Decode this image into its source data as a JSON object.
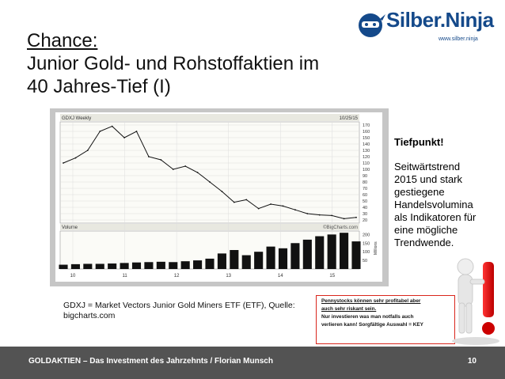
{
  "slide": {
    "title_line1": "Chance:",
    "title_line2": "Junior Gold- und Rohstoffaktien im",
    "title_line3": "40 Jahres-Tief (I)",
    "side_heading": "Tiefpunkt!",
    "side_body": "Seitwärtstrend 2015 und stark gestiegene Handelsvolumina als Indikatoren für eine mögliche Trendwende.",
    "caption": "GDXJ = Market Vectors Junior Gold Miners ETF (ETF), Quelle: bigcharts.com",
    "warning": {
      "line1": "Pennystocks können sehr profitabel aber",
      "line2": "auch sehr riskant sein.",
      "line3": "Nur investieren was man notfalls auch",
      "line4": "verlieren kann! Sorgfältige Auswahl = KEY"
    }
  },
  "logo": {
    "name_part1": "Silber",
    "name_part2": ".Ninja",
    "url": "www.silber.ninja",
    "accent_color": "#14498a"
  },
  "footer": {
    "text": "GOLDAKTIEN – Das Investment des Jahrzehnts / Florian Munsch",
    "page": "10"
  },
  "chart_data": {
    "type": "line",
    "title": "GDXJ Weekly",
    "date_label": "10/25/15",
    "watermark": "©BigCharts.com",
    "volume_label": "Volume",
    "x_ticks": [
      "10",
      "11",
      "12",
      "13",
      "14",
      "15"
    ],
    "y_ticks": [
      "170",
      "160",
      "150",
      "140",
      "130",
      "120",
      "110",
      "100",
      "90",
      "80",
      "70",
      "60",
      "50",
      "40",
      "30",
      "20"
    ],
    "volume_unit": "Millions",
    "volume_ticks": [
      "200",
      "150",
      "100",
      "50"
    ],
    "ylim": [
      15,
      175
    ],
    "x": [
      "2009-11",
      "2010-03",
      "2010-07",
      "2010-11",
      "2011-03",
      "2011-07",
      "2011-09",
      "2011-12",
      "2012-03",
      "2012-06",
      "2012-09",
      "2012-12",
      "2013-02",
      "2013-04",
      "2013-06",
      "2013-08",
      "2013-12",
      "2014-03",
      "2014-06",
      "2014-09",
      "2014-12",
      "2015-03",
      "2015-06",
      "2015-09",
      "2015-10"
    ],
    "values": [
      110,
      118,
      130,
      160,
      168,
      150,
      160,
      120,
      115,
      100,
      105,
      95,
      80,
      65,
      48,
      52,
      38,
      45,
      42,
      36,
      30,
      28,
      27,
      22,
      24
    ],
    "volume": [
      25,
      28,
      30,
      30,
      32,
      35,
      38,
      40,
      42,
      40,
      45,
      50,
      60,
      90,
      110,
      80,
      100,
      130,
      120,
      150,
      170,
      190,
      200,
      210,
      160
    ]
  }
}
